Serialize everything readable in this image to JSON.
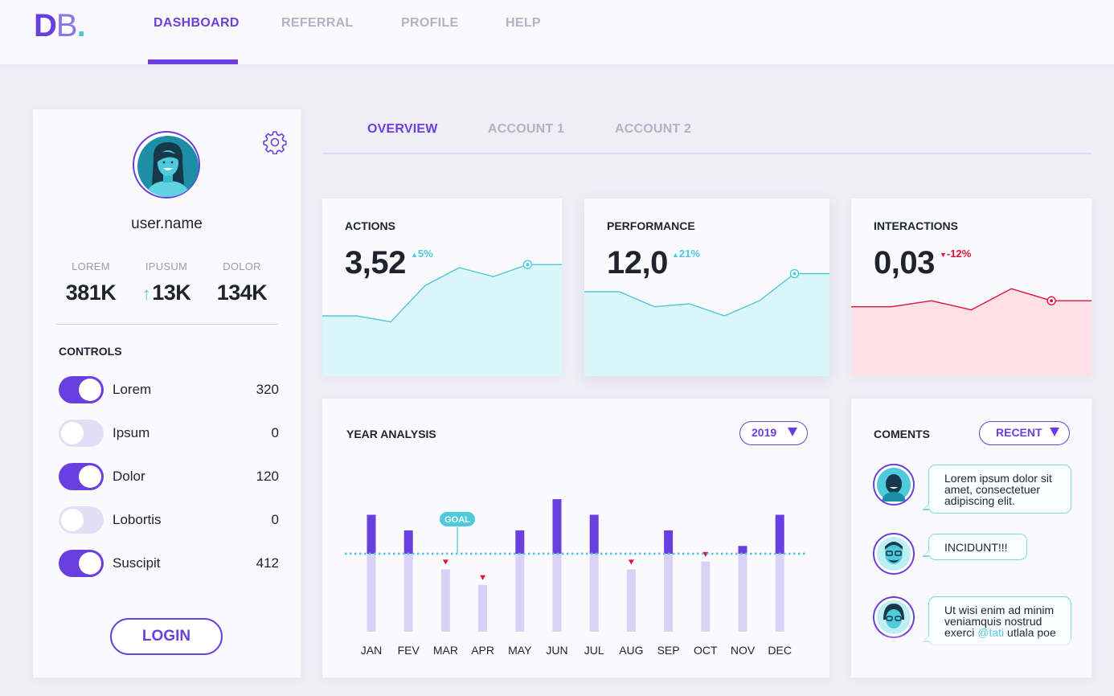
{
  "logo": {
    "letter1": "D",
    "letter2": "B",
    "dot": "."
  },
  "nav": {
    "items": [
      "DASHBOARD",
      "REFERRAL",
      "PROFILE",
      "HELP"
    ],
    "active": "DASHBOARD"
  },
  "profile": {
    "username": "user.name",
    "stats": [
      {
        "label": "LOREM",
        "value": "381K"
      },
      {
        "label": "IPUSUM",
        "value": "13K",
        "trend": "up"
      },
      {
        "label": "DOLOR",
        "value": "134K"
      }
    ],
    "controls_title": "CONTROLS",
    "controls": [
      {
        "label": "Lorem",
        "value": "320",
        "on": true
      },
      {
        "label": "Ipsum",
        "value": "0",
        "on": false
      },
      {
        "label": "Dolor",
        "value": "120",
        "on": true
      },
      {
        "label": "Lobortis",
        "value": "0",
        "on": false
      },
      {
        "label": "Suscipit",
        "value": "412",
        "on": true
      }
    ],
    "login_label": "LOGIN"
  },
  "tabs": {
    "items": [
      "OVERVIEW",
      "ACCOUNT 1",
      "ACCOUNT 2"
    ],
    "active": "OVERVIEW"
  },
  "metrics": [
    {
      "title": "ACTIONS",
      "value": "3,52",
      "delta": "5%",
      "trend": "up",
      "color": "#4fc9dc",
      "fill": "#dbf6f9",
      "series": [
        40,
        40,
        36,
        60,
        72,
        66,
        74,
        74
      ]
    },
    {
      "title": "PERFORMANCE",
      "value": "12,0",
      "delta": "21%",
      "trend": "up",
      "color": "#4fc9dc",
      "fill": "#dbf6f9",
      "series": [
        56,
        56,
        46,
        48,
        40,
        50,
        68,
        68
      ]
    },
    {
      "title": "INTERACTIONS",
      "value": "0,03",
      "delta": "-12%",
      "trend": "down",
      "color": "#e0103a",
      "fill": "#fde1e6",
      "series": [
        46,
        46,
        50,
        44,
        58,
        50,
        50
      ]
    }
  ],
  "year_analysis": {
    "title": "YEAR ANALYSIS",
    "year_label": "2019",
    "goal_label": "GOAL",
    "chart_data": {
      "type": "bar",
      "categories": [
        "JAN",
        "FEV",
        "MAR",
        "APR",
        "MAY",
        "JUN",
        "JUL",
        "AUG",
        "SEP",
        "OCT",
        "NOV",
        "DEC"
      ],
      "goal": 100,
      "values": [
        150,
        130,
        80,
        60,
        130,
        170,
        150,
        80,
        130,
        90,
        110,
        150
      ],
      "colors": {
        "above": "#6a3fe0",
        "base": "#d9d2f7",
        "goal": "#4fc9dc",
        "below_marker": "#e0103a"
      }
    }
  },
  "comments": {
    "title": "COMENTS",
    "filter_label": "RECENT",
    "items": [
      {
        "text": "Lorem ipsum dolor sit amet, consectetuer adipiscing elit."
      },
      {
        "text": "INCIDUNT!!!"
      },
      {
        "text": "Ut wisi enim ad minim veniamquis nostrud exerci",
        "mention": "@tati",
        "tail": "utlala poe"
      }
    ]
  }
}
